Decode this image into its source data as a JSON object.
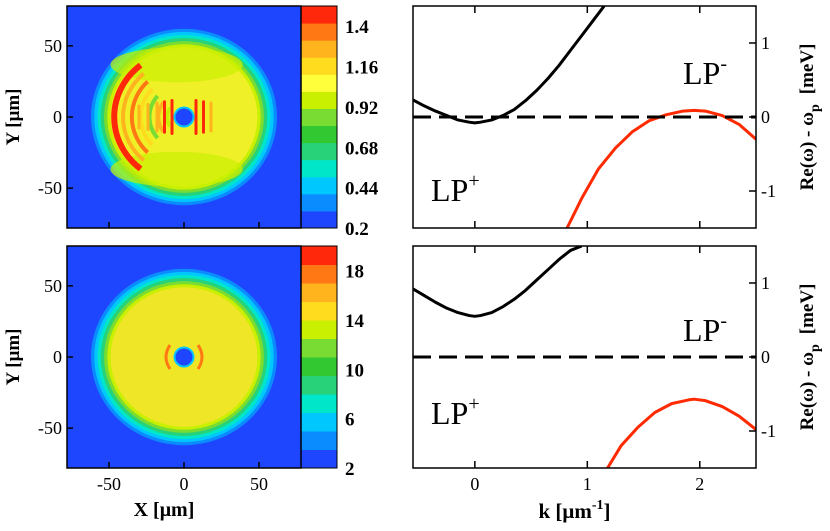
{
  "figure": {
    "colors": {
      "background": "#ffffff",
      "axis": "#000000",
      "dispersion_lower": "#000000",
      "dispersion_upper": "#ff2a00",
      "dashed": "#000000",
      "map_outside": "#1e46ff"
    }
  },
  "chart_data": [
    {
      "id": "map-top",
      "type": "heatmap",
      "title": "",
      "xlabel": "X  [μm]",
      "ylabel": "Y  [μm]",
      "xlim": [
        -78,
        78
      ],
      "ylim": [
        -78,
        78
      ],
      "x_ticks": [
        "-50",
        "0",
        "50"
      ],
      "y_ticks": [
        "50",
        "0",
        "-50"
      ],
      "colorbar": {
        "tick_labels": [
          "1.4",
          "1.16",
          "0.92",
          "0.68",
          "0.44",
          "0.2"
        ],
        "range": [
          0.2,
          1.52
        ],
        "colors": [
          "#1e46ff",
          "#0a8cff",
          "#00c8ff",
          "#00e6c8",
          "#28d278",
          "#32c832",
          "#78dc32",
          "#c8f000",
          "#ffff3c",
          "#ffdc1e",
          "#ffb41e",
          "#ff7814",
          "#ff280a"
        ]
      },
      "description_values": {
        "disk_radius": 62,
        "defect_radius": 5,
        "field_level": "yellow",
        "fringes": "red/orange arcs on left half, vertical stripes near center"
      }
    },
    {
      "id": "disp-top",
      "type": "line",
      "xlabel": "",
      "ylabel": "Re(ω) - ω",
      "ylabel_sub": "p",
      "ylabel_unit": "[meV]",
      "xlim": [
        -0.55,
        2.5
      ],
      "ylim": [
        -1.5,
        1.5
      ],
      "y_ticks": [
        "1",
        "0",
        "-1"
      ],
      "annotations": [
        {
          "base": "LP",
          "sup": "-"
        },
        {
          "base": "LP",
          "sup": "+"
        }
      ],
      "series": [
        {
          "name": "lower branch",
          "color": "#000000",
          "x": [
            -0.55,
            -0.45,
            -0.35,
            -0.25,
            -0.15,
            -0.05,
            0.0,
            0.05,
            0.15,
            0.25,
            0.35,
            0.45,
            0.55,
            0.65,
            0.75,
            0.85,
            0.95,
            1.05,
            1.15
          ],
          "y": [
            0.23,
            0.15,
            0.08,
            0.02,
            -0.04,
            -0.07,
            -0.08,
            -0.07,
            -0.04,
            0.02,
            0.1,
            0.22,
            0.36,
            0.52,
            0.7,
            0.9,
            1.1,
            1.3,
            1.5
          ]
        },
        {
          "name": "upper branch",
          "color": "#ff2a00",
          "x": [
            0.82,
            0.95,
            1.1,
            1.25,
            1.4,
            1.55,
            1.7,
            1.85,
            1.95,
            2.05,
            2.2,
            2.35,
            2.5
          ],
          "y": [
            -1.5,
            -1.1,
            -0.7,
            -0.42,
            -0.2,
            -0.05,
            0.03,
            0.08,
            0.09,
            0.08,
            0.02,
            -0.1,
            -0.3
          ]
        },
        {
          "name": "zero",
          "color": "#000000",
          "dashed": true,
          "x": [
            -0.55,
            2.5
          ],
          "y": [
            0,
            0
          ]
        }
      ]
    },
    {
      "id": "map-bottom",
      "type": "heatmap",
      "title": "",
      "xlabel": "X  [μm]",
      "ylabel": "Y  [μm]",
      "xlim": [
        -78,
        78
      ],
      "ylim": [
        -78,
        78
      ],
      "x_ticks": [
        "-50",
        "0",
        "50"
      ],
      "y_ticks": [
        "50",
        "0",
        "-50"
      ],
      "colorbar": {
        "tick_labels": [
          "18",
          "14",
          "10",
          "6",
          "2"
        ],
        "range": [
          2,
          20
        ],
        "colors": [
          "#1e46ff",
          "#0a8cff",
          "#00c8ff",
          "#00e6c8",
          "#28d278",
          "#32c832",
          "#78dc32",
          "#c8f000",
          "#ffdc1e",
          "#ffb41e",
          "#ff7814",
          "#ff280a"
        ]
      },
      "description_values": {
        "disk_radius": 62,
        "defect_radius": 5,
        "field_level": "yellow",
        "fringes": "small orange lobes beside defect"
      }
    },
    {
      "id": "disp-bottom",
      "type": "line",
      "xlabel": "k  [μm",
      "xlabel_sup": "-1",
      "xlabel_close": "]",
      "ylabel": "Re(ω) - ω",
      "ylabel_sub": "p",
      "ylabel_unit": "[meV]",
      "xlim": [
        -0.55,
        2.5
      ],
      "ylim": [
        -1.5,
        1.5
      ],
      "x_ticks": [
        "0",
        "1",
        "2"
      ],
      "y_ticks": [
        "1",
        "0",
        "-1"
      ],
      "annotations": [
        {
          "base": "LP",
          "sup": "-"
        },
        {
          "base": "LP",
          "sup": "+"
        }
      ],
      "series": [
        {
          "name": "lower branch",
          "color": "#000000",
          "x": [
            -0.55,
            -0.45,
            -0.35,
            -0.25,
            -0.15,
            -0.05,
            0.0,
            0.05,
            0.15,
            0.25,
            0.35,
            0.45,
            0.55,
            0.65,
            0.75,
            0.85,
            0.95
          ],
          "y": [
            0.92,
            0.83,
            0.74,
            0.66,
            0.6,
            0.56,
            0.55,
            0.56,
            0.6,
            0.68,
            0.78,
            0.9,
            1.04,
            1.18,
            1.32,
            1.44,
            1.5
          ]
        },
        {
          "name": "upper branch",
          "color": "#ff2a00",
          "x": [
            1.18,
            1.3,
            1.45,
            1.6,
            1.75,
            1.9,
            1.95,
            2.05,
            2.2,
            2.35,
            2.5
          ],
          "y": [
            -1.5,
            -1.2,
            -0.95,
            -0.75,
            -0.63,
            -0.58,
            -0.57,
            -0.59,
            -0.67,
            -0.8,
            -0.98
          ]
        },
        {
          "name": "zero",
          "color": "#000000",
          "dashed": true,
          "x": [
            -0.55,
            2.5
          ],
          "y": [
            0,
            0
          ]
        }
      ]
    }
  ]
}
